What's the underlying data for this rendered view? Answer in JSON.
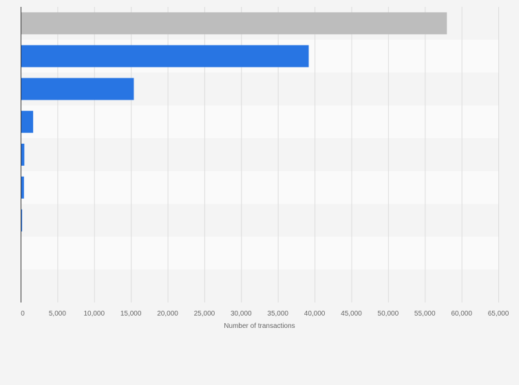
{
  "chart_data": {
    "type": "bar",
    "orientation": "horizontal",
    "categories": [
      "",
      "",
      "",
      "",
      "",
      "",
      "",
      "",
      ""
    ],
    "values": [
      58000,
      39200,
      15400,
      1700,
      500,
      450,
      200,
      0,
      0
    ],
    "highlight_index": 0,
    "colors": {
      "highlight": "#bdbdbd",
      "default": "#2875e3",
      "grid": "#dcdcdc",
      "axis": "#333333",
      "band_light": "#fafafa",
      "band_dark": "#f4f4f4"
    },
    "title": "",
    "xlabel": "Number of transactions",
    "ylabel": "",
    "xlim": [
      0,
      65000
    ],
    "xticks": [
      0,
      5000,
      10000,
      15000,
      20000,
      25000,
      30000,
      35000,
      40000,
      45000,
      50000,
      55000,
      60000,
      65000
    ],
    "xtick_labels": [
      "0",
      "5,000",
      "10,000",
      "15,000",
      "20,000",
      "25,000",
      "30,000",
      "35,000",
      "40,000",
      "45,000",
      "50,000",
      "55,000",
      "60,000",
      "65,000"
    ],
    "grid": true,
    "legend": "none"
  }
}
